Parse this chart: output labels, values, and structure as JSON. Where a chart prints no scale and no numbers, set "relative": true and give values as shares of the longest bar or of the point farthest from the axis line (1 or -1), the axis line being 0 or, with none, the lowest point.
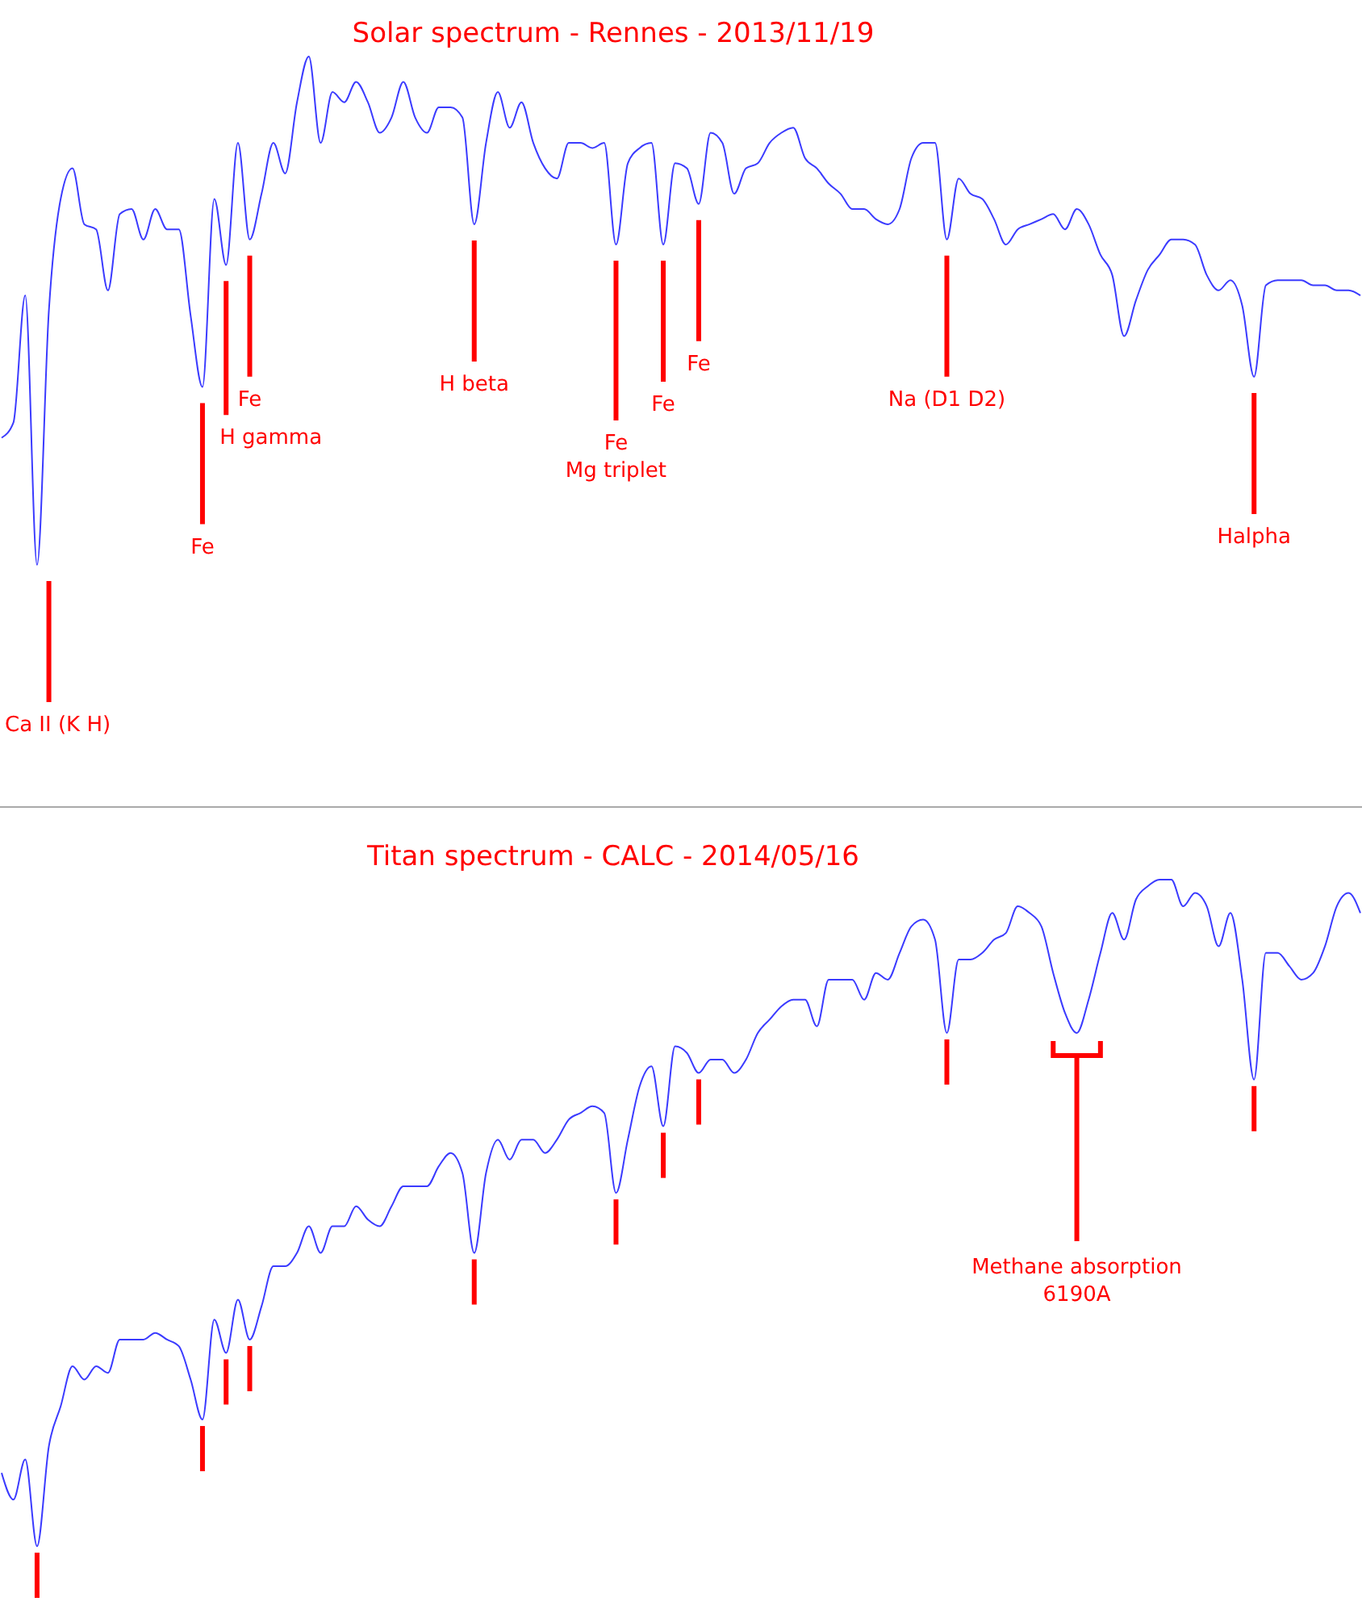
{
  "chart_data": [
    {
      "type": "line",
      "title": "Solar spectrum - Rennes - 2013/11/19",
      "relative": true,
      "categories": [
        null,
        null,
        null,
        null,
        null,
        null,
        null,
        null,
        null,
        null,
        null,
        null,
        null,
        null,
        null,
        null,
        null,
        null,
        null,
        null,
        null,
        null,
        null,
        null,
        null,
        null,
        null,
        null,
        null,
        null,
        null,
        null,
        null,
        null,
        null,
        null,
        null,
        null,
        null,
        null,
        null,
        null,
        null,
        null,
        null,
        null,
        null,
        null,
        null,
        null,
        null,
        null,
        null,
        null,
        null,
        null,
        null,
        null,
        null,
        null,
        null,
        null,
        null,
        null,
        null,
        null,
        null,
        null,
        null,
        null,
        null,
        null,
        null,
        null,
        null,
        null,
        null,
        null,
        null,
        null,
        null,
        null,
        null,
        null,
        null,
        null,
        null,
        null,
        null,
        null,
        null,
        null,
        null,
        null,
        null,
        null,
        null,
        null,
        null,
        null,
        null,
        null,
        null,
        null,
        null,
        null,
        null,
        null,
        null,
        null,
        null,
        null,
        null,
        null,
        null,
        null
      ],
      "series": [
        {
          "color": "#3b3bff",
          "values": [
            0.25,
            0.28,
            0.53,
            0.0,
            0.5,
            0.72,
            0.78,
            0.67,
            0.66,
            0.54,
            0.69,
            0.7,
            0.64,
            0.7,
            0.66,
            0.66,
            0.49,
            0.35,
            0.72,
            0.59,
            0.83,
            0.64,
            0.73,
            0.83,
            0.77,
            0.91,
            1.0,
            0.83,
            0.93,
            0.91,
            0.95,
            0.91,
            0.85,
            0.88,
            0.95,
            0.88,
            0.85,
            0.9,
            0.9,
            0.88,
            0.67,
            0.83,
            0.93,
            0.86,
            0.91,
            0.83,
            0.78,
            0.76,
            0.83,
            0.83,
            0.82,
            0.83,
            0.63,
            0.79,
            0.82,
            0.83,
            0.63,
            0.79,
            0.78,
            0.71,
            0.85,
            0.83,
            0.73,
            0.78,
            0.79,
            0.83,
            0.85,
            0.86,
            0.8,
            0.78,
            0.75,
            0.73,
            0.7,
            0.7,
            0.68,
            0.67,
            0.7,
            0.8,
            0.83,
            0.83,
            0.64,
            0.76,
            0.73,
            0.72,
            0.68,
            0.63,
            0.66,
            0.67,
            0.68,
            0.69,
            0.66,
            0.7,
            0.67,
            0.61,
            0.57,
            0.45,
            0.52,
            0.58,
            0.61,
            0.64,
            0.64,
            0.63,
            0.57,
            0.54,
            0.56,
            0.51,
            0.37,
            0.55,
            0.56,
            0.56,
            0.56,
            0.55,
            0.55,
            0.54,
            0.54,
            0.53
          ]
        }
      ],
      "annotations": [
        "Ca II (K H)",
        "Fe",
        "H gamma",
        "Fe",
        "H beta",
        "Fe\nMg triplet",
        "Fe",
        "Fe",
        "Na (D1 D2)",
        "Halpha"
      ]
    },
    {
      "type": "line",
      "title": "Titan spectrum - CALC - 2014/05/16",
      "relative": true,
      "categories": [
        null,
        null,
        null,
        null,
        null,
        null,
        null,
        null,
        null,
        null,
        null,
        null,
        null,
        null,
        null,
        null,
        null,
        null,
        null,
        null,
        null,
        null,
        null,
        null,
        null,
        null,
        null,
        null,
        null,
        null,
        null,
        null,
        null,
        null,
        null,
        null,
        null,
        null,
        null,
        null,
        null,
        null,
        null,
        null,
        null,
        null,
        null,
        null,
        null,
        null,
        null,
        null,
        null,
        null,
        null,
        null,
        null,
        null,
        null,
        null,
        null,
        null,
        null,
        null,
        null,
        null,
        null,
        null,
        null,
        null,
        null,
        null,
        null,
        null,
        null,
        null,
        null,
        null,
        null,
        null,
        null,
        null,
        null,
        null,
        null,
        null,
        null,
        null,
        null,
        null,
        null,
        null,
        null,
        null,
        null,
        null,
        null,
        null,
        null,
        null,
        null,
        null,
        null,
        null,
        null,
        null,
        null,
        null,
        null,
        null,
        null,
        null,
        null,
        null,
        null,
        null
      ],
      "series": [
        {
          "color": "#3b3bff",
          "values": [
            0.11,
            0.07,
            0.13,
            0.0,
            0.15,
            0.21,
            0.27,
            0.25,
            0.27,
            0.26,
            0.31,
            0.31,
            0.31,
            0.32,
            0.31,
            0.3,
            0.25,
            0.19,
            0.34,
            0.29,
            0.37,
            0.31,
            0.36,
            0.42,
            0.42,
            0.44,
            0.48,
            0.44,
            0.48,
            0.48,
            0.51,
            0.49,
            0.48,
            0.51,
            0.54,
            0.54,
            0.54,
            0.57,
            0.59,
            0.56,
            0.44,
            0.56,
            0.61,
            0.58,
            0.61,
            0.61,
            0.59,
            0.61,
            0.64,
            0.65,
            0.66,
            0.65,
            0.53,
            0.61,
            0.69,
            0.72,
            0.63,
            0.75,
            0.74,
            0.71,
            0.73,
            0.73,
            0.71,
            0.73,
            0.77,
            0.79,
            0.81,
            0.82,
            0.82,
            0.78,
            0.85,
            0.85,
            0.85,
            0.82,
            0.86,
            0.85,
            0.89,
            0.93,
            0.94,
            0.91,
            0.77,
            0.88,
            0.88,
            0.89,
            0.91,
            0.92,
            0.96,
            0.95,
            0.93,
            0.86,
            0.8,
            0.77,
            0.82,
            0.89,
            0.95,
            0.91,
            0.97,
            0.99,
            1.0,
            1.0,
            0.96,
            0.98,
            0.96,
            0.9,
            0.95,
            0.85,
            0.7,
            0.89,
            0.89,
            0.87,
            0.85,
            0.86,
            0.9,
            0.96,
            0.98,
            0.95
          ]
        }
      ],
      "annotations": [
        "Methane absorption\n6190A"
      ]
    }
  ]
}
